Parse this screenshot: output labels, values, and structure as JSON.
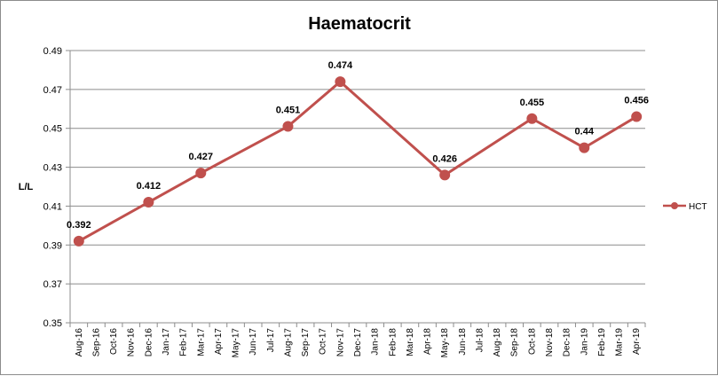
{
  "chart_data": {
    "type": "line",
    "title": "Haematocrit",
    "ylabel": "L/L",
    "xlabel": "",
    "ylim": [
      0.35,
      0.49
    ],
    "yticks": [
      "0.35",
      "0.37",
      "0.39",
      "0.41",
      "0.43",
      "0.45",
      "0.47",
      "0.49"
    ],
    "categories": [
      "Aug-16",
      "Sep-16",
      "Oct-16",
      "Nov-16",
      "Dec-16",
      "Jan-17",
      "Feb-17",
      "Mar-17",
      "Apr-17",
      "May-17",
      "Jun-17",
      "Jul-17",
      "Aug-17",
      "Sep-17",
      "Oct-17",
      "Nov-17",
      "Dec-17",
      "Jan-18",
      "Feb-18",
      "Mar-18",
      "Apr-18",
      "May-18",
      "Jun-18",
      "Jul-18",
      "Aug-18",
      "Sep-18",
      "Oct-18",
      "Nov-18",
      "Dec-18",
      "Jan-19",
      "Feb-19",
      "Mar-19",
      "Apr-19"
    ],
    "series": [
      {
        "name": "HCT",
        "color": "#c0504d",
        "points": [
          {
            "x": "Aug-16",
            "y": 0.392,
            "label": "0.392"
          },
          {
            "x": "Dec-16",
            "y": 0.412,
            "label": "0.412"
          },
          {
            "x": "Mar-17",
            "y": 0.427,
            "label": "0.427"
          },
          {
            "x": "Aug-17",
            "y": 0.451,
            "label": "0.451"
          },
          {
            "x": "Nov-17",
            "y": 0.474,
            "label": "0.474"
          },
          {
            "x": "May-18",
            "y": 0.426,
            "label": "0.426"
          },
          {
            "x": "Oct-18",
            "y": 0.455,
            "label": "0.455"
          },
          {
            "x": "Jan-19",
            "y": 0.44,
            "label": "0.44"
          },
          {
            "x": "Apr-19",
            "y": 0.456,
            "label": "0.456"
          }
        ]
      }
    ],
    "grid": true,
    "legend_position": "right",
    "gridline_color": "#8c8c8c",
    "axis_color": "#8c8c8c"
  }
}
